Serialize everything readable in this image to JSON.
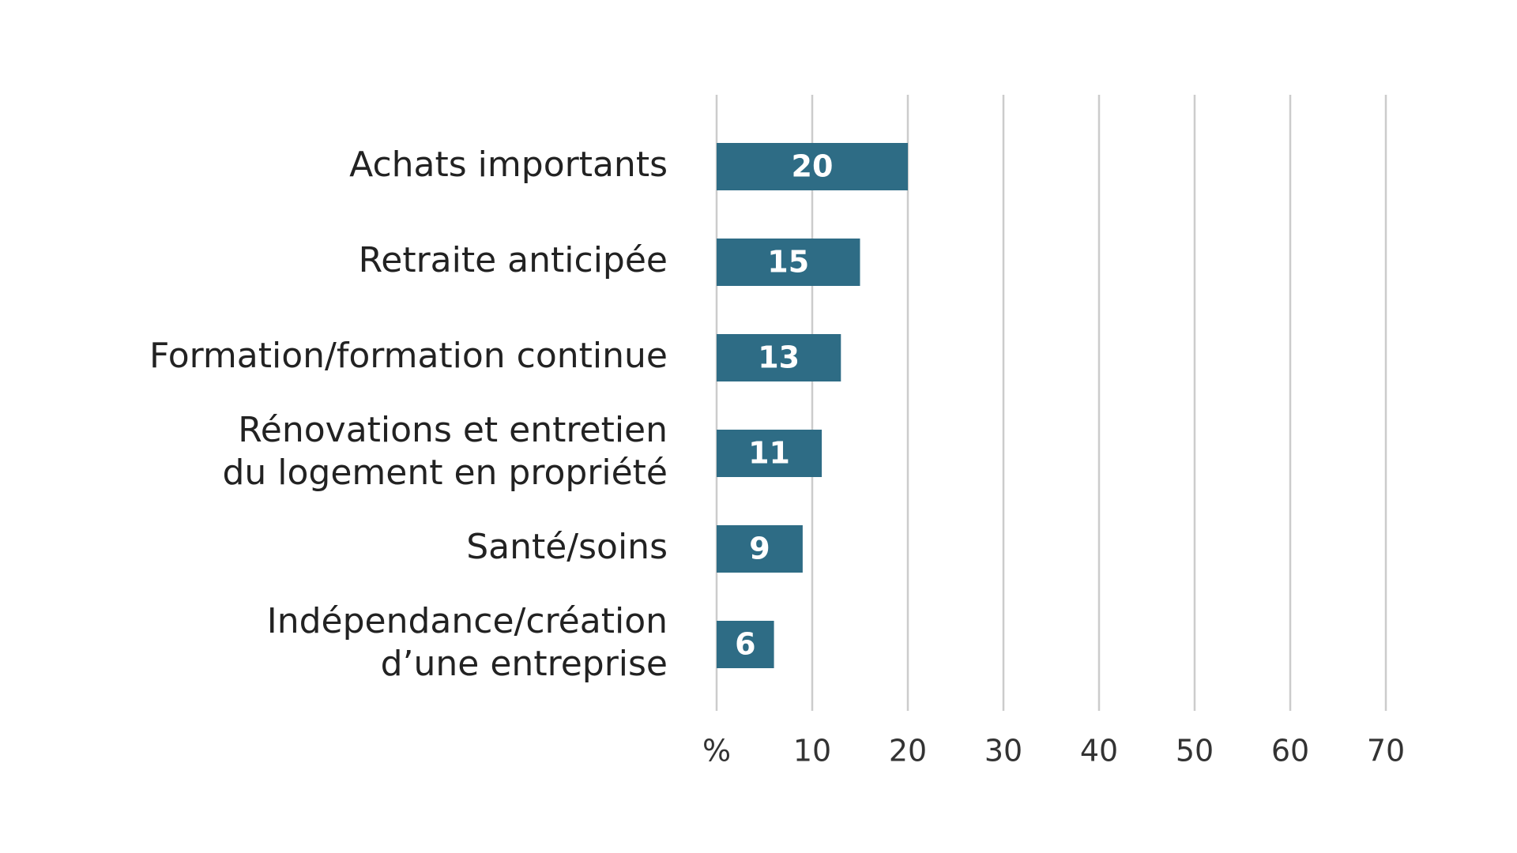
{
  "chart_data": {
    "type": "bar",
    "orientation": "horizontal",
    "categories": [
      [
        "Achats importants"
      ],
      [
        "Retraite anticipée"
      ],
      [
        "Formation/formation continue"
      ],
      [
        "Rénovations et entretien",
        "du logement en propriété"
      ],
      [
        "Santé/soins"
      ],
      [
        "Indépendance/création",
        "d’une entreprise"
      ]
    ],
    "values": [
      20,
      15,
      13,
      11,
      9,
      6
    ],
    "xlim": [
      0,
      70
    ],
    "ticks": [
      0,
      10,
      20,
      30,
      40,
      50,
      60,
      70
    ],
    "tick_labels": [
      "%",
      "10",
      "20",
      "30",
      "40",
      "50",
      "60",
      "70"
    ],
    "value_labels": true,
    "grid": "vertical",
    "legend": "none",
    "colors": {
      "bar": "#2e6c85",
      "grid": "#cccccc",
      "value_text": "#ffffff",
      "label_text": "#222222"
    }
  }
}
